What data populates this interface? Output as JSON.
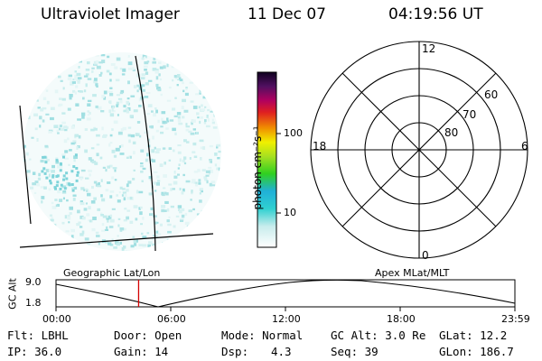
{
  "header": {
    "instrument": "Ultraviolet Imager",
    "date": "11 Dec 07",
    "time": "04:19:56 UT"
  },
  "colorbar": {
    "unit_label": "photon cm⁻²s⁻¹",
    "ticks": [
      "100",
      "10"
    ]
  },
  "polar_plot": {
    "mlt_labels": {
      "top": "12",
      "left": "18",
      "right": "6",
      "bottom": "0"
    },
    "lat_labels": [
      "60",
      "70",
      "80"
    ]
  },
  "timeline": {
    "left_title": "Geographic Lat/Lon",
    "right_title": "Apex MLat/MLT",
    "ylabel": "GC Alt",
    "y_ticks": [
      "9.0",
      "1.8"
    ],
    "x_ticks": [
      "00:00",
      "06:00",
      "12:00",
      "18:00",
      "23:59"
    ],
    "current_time_fraction": 0.18,
    "marker_color": "#d40000"
  },
  "info": {
    "row1": {
      "flt": "Flt: LBHL",
      "door": "Door: Open",
      "mode": "Mode: Normal",
      "gcalt": "GC Alt: 3.0 Re",
      "glat": "GLat: 12.2"
    },
    "row2": {
      "ip": "IP: 36.0",
      "gain": "Gain: 14",
      "dsp_label": "Dsp:",
      "dsp_value": "4.3",
      "seq": "Seq: 39",
      "glon": "GLon: 186.7"
    }
  }
}
